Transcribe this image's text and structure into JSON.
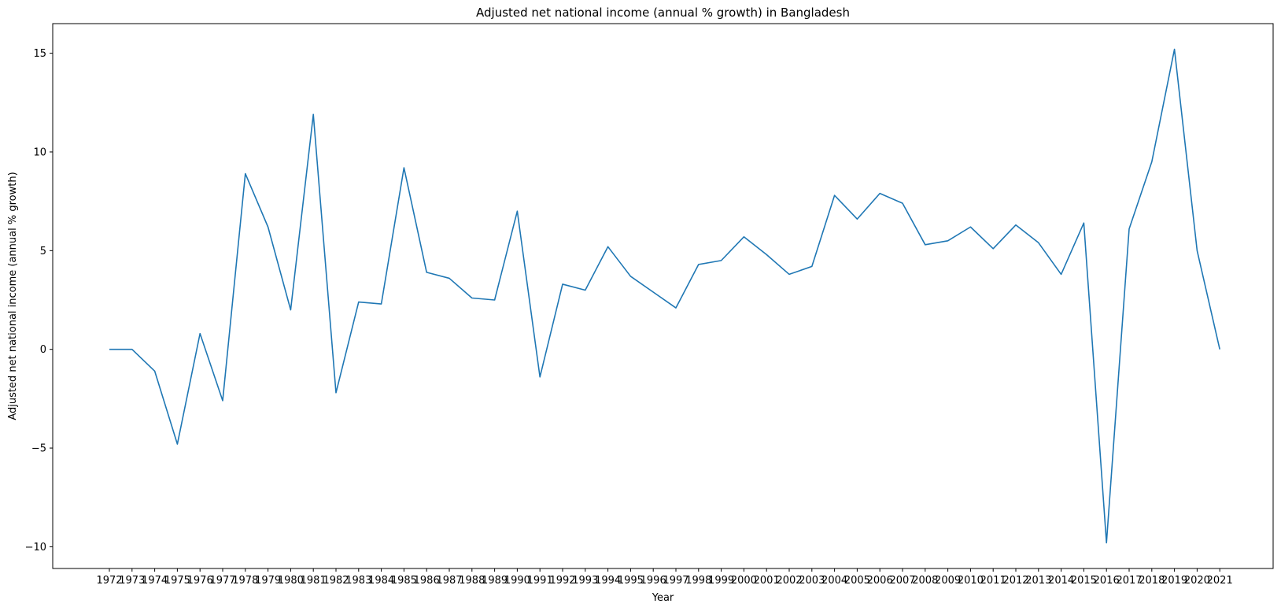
{
  "chart_data": {
    "type": "line",
    "title": "Adjusted net national income (annual % growth) in Bangladesh",
    "xlabel": "Year",
    "ylabel": "Adjusted net national income (annual % growth)",
    "ylim": [
      -11.1,
      16.5
    ],
    "yticks": [
      -10,
      -5,
      0,
      5,
      10,
      15
    ],
    "ytick_labels": [
      "−10",
      "−5",
      "0",
      "5",
      "10",
      "15"
    ],
    "grid": false,
    "line_color": "#1f77b4",
    "x": [
      "1972",
      "1973",
      "1974",
      "1975",
      "1976",
      "1977",
      "1978",
      "1979",
      "1980",
      "1981",
      "1982",
      "1983",
      "1984",
      "1985",
      "1986",
      "1987",
      "1988",
      "1989",
      "1990",
      "1991",
      "1992",
      "1993",
      "1994",
      "1995",
      "1996",
      "1997",
      "1998",
      "1999",
      "2000",
      "2001",
      "2002",
      "2003",
      "2004",
      "2005",
      "2006",
      "2007",
      "2008",
      "2009",
      "2010",
      "2011",
      "2012",
      "2013",
      "2014",
      "2015",
      "2016",
      "2017",
      "2018",
      "2019",
      "2020",
      "2021"
    ],
    "series": [
      {
        "values": [
          0,
          0,
          -1.1,
          -4.8,
          0.8,
          -2.6,
          8.9,
          6.2,
          2.0,
          11.9,
          -2.2,
          2.4,
          2.3,
          9.2,
          3.9,
          3.6,
          2.6,
          2.5,
          7.0,
          -1.4,
          3.3,
          3.0,
          5.2,
          3.7,
          2.9,
          2.1,
          4.3,
          4.5,
          5.7,
          4.8,
          3.8,
          4.2,
          7.8,
          6.6,
          7.9,
          7.4,
          5.3,
          5.5,
          6.2,
          5.1,
          6.3,
          5.4,
          3.8,
          6.4,
          -9.8,
          6.1,
          9.5,
          15.2,
          5.0,
          0
        ]
      }
    ]
  }
}
